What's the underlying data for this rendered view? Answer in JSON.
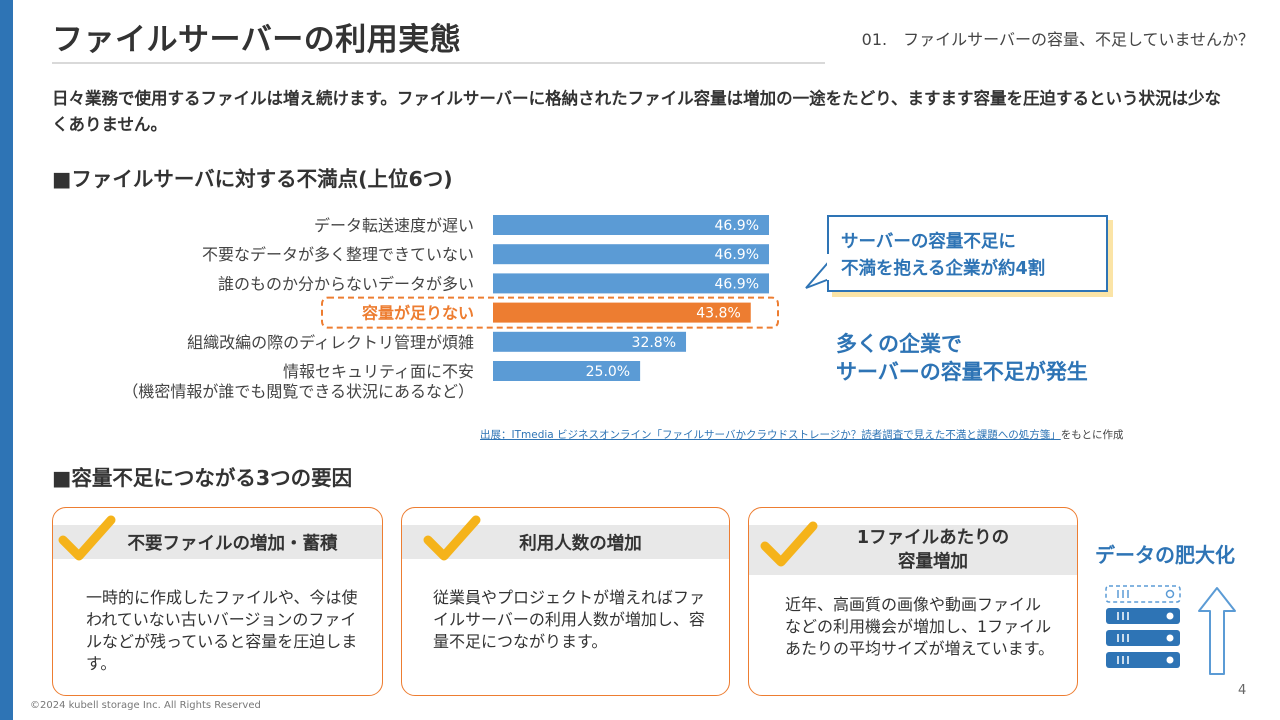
{
  "header": {
    "title": "ファイルサーバーの利用実態",
    "section_label": "01.　ファイルサーバーの容量、不足していませんか？"
  },
  "intro": "日々業務で使用するファイルは増え続けます。ファイルサーバーに格納されたファイル容量は増加の一途をたどり、ますます容量を圧迫するという状況は少なくありません。",
  "survey": {
    "heading": "■ファイルサーバに対する不満点(上位6つ)",
    "callout_line1": "サーバーの容量不足に",
    "callout_line2": "不満を抱える企業が約4割",
    "note_line1": "多くの企業で",
    "note_line2": "サーバーの容量不足が発生",
    "source_link": "出展：ITmedia ビジネスオンライン「ファイルサーバかクラウドストレージか？読者調査で見えた不満と課題への処方箋」",
    "source_suffix": "をもとに作成"
  },
  "chart_data": {
    "type": "bar",
    "orientation": "horizontal",
    "categories": [
      "データ転送速度が遅い",
      "不要なデータが多く整理できていない",
      "誰のものか分からないデータが多い",
      "容量が足りない",
      "組織改編の際のディレクトリ管理が煩雑",
      "情報セキュリティ面に不安"
    ],
    "category_sublabels": [
      "",
      "",
      "",
      "",
      "",
      "（機密情報が誰でも閲覧できる状況にあるなど）"
    ],
    "values": [
      46.9,
      46.9,
      46.9,
      43.8,
      32.8,
      25.0
    ],
    "value_labels": [
      "46.9%",
      "46.9%",
      "46.9%",
      "43.8%",
      "32.8%",
      "25.0%"
    ],
    "highlight_index": 3,
    "bar_color": "#5b9bd5",
    "highlight_color": "#ed7d31",
    "grid": false,
    "legend": "none"
  },
  "factors": {
    "heading": "■容量不足につながる3つの要因",
    "cards": [
      {
        "title": "不要ファイルの増加・蓄積",
        "body": "一時的に作成したファイルや、今は使われていない古いバージョンのファイルなどが残っていると容量を圧迫します。"
      },
      {
        "title": "利用人数の増加",
        "body": "従業員やプロジェクトが増えればファイルサーバーの利用人数が増加し、容量不足につながります。"
      },
      {
        "title_line1": "1ファイルあたりの",
        "title_line2": "容量増加",
        "body": "近年、高画質の画像や動画ファイルなどの利用機会が増加し、1ファイルあたりの平均サイズが増えています。"
      }
    ],
    "data_growth_label": "データの肥大化",
    "icons": [
      "check-icon",
      "server-icon",
      "up-arrow-icon"
    ]
  },
  "colors": {
    "accent_blue": "#2e74b5",
    "orange": "#ed7d31",
    "check_yellow": "#f5b31a"
  },
  "footer": {
    "page_number": "4",
    "copyright": "©2024 kubell storage Inc. All Rights Reserved"
  }
}
